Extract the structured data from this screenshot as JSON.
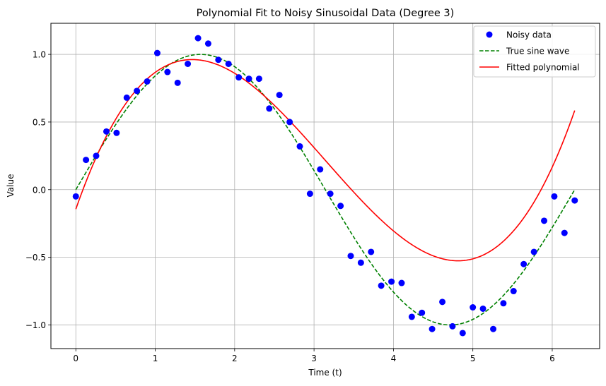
{
  "chart_data": {
    "type": "scatter",
    "title": "Polynomial Fit to Noisy Sinusoidal Data (Degree 3)",
    "xlabel": "Time (t)",
    "ylabel": "Value",
    "xlim": [
      -0.314,
      6.597
    ],
    "ylim": [
      -1.175,
      1.23
    ],
    "xticks": [
      0,
      1,
      2,
      3,
      4,
      5,
      6
    ],
    "xtick_labels": [
      "0",
      "1",
      "2",
      "3",
      "4",
      "5",
      "6"
    ],
    "yticks": [
      -1.0,
      -0.5,
      0.0,
      0.5,
      1.0
    ],
    "ytick_labels": [
      "−1.0",
      "−0.5",
      "0.0",
      "0.5",
      "1.0"
    ],
    "grid": true,
    "legend_position": "top-right",
    "series": [
      {
        "name": "Noisy data",
        "kind": "scatter",
        "color": "#0000ff",
        "x": [
          0.0,
          0.128,
          0.256,
          0.385,
          0.513,
          0.641,
          0.769,
          0.898,
          1.026,
          1.154,
          1.282,
          1.41,
          1.539,
          1.667,
          1.795,
          1.923,
          2.052,
          2.18,
          2.308,
          2.436,
          2.564,
          2.693,
          2.821,
          2.949,
          3.077,
          3.205,
          3.334,
          3.462,
          3.59,
          3.718,
          3.846,
          3.975,
          4.103,
          4.231,
          4.359,
          4.487,
          4.616,
          4.744,
          4.872,
          5.0,
          5.128,
          5.257,
          5.385,
          5.513,
          5.641,
          5.77,
          5.898,
          6.026,
          6.154,
          6.283
        ],
        "y": [
          -0.05,
          0.22,
          0.25,
          0.43,
          0.42,
          0.68,
          0.73,
          0.8,
          1.01,
          0.87,
          0.79,
          0.93,
          1.12,
          1.08,
          0.96,
          0.93,
          0.83,
          0.82,
          0.82,
          0.6,
          0.7,
          0.5,
          0.32,
          -0.03,
          0.15,
          -0.03,
          -0.12,
          -0.49,
          -0.54,
          -0.46,
          -0.71,
          -0.68,
          -0.69,
          -0.94,
          -0.91,
          -1.03,
          -0.83,
          -1.01,
          -1.06,
          -0.87,
          -0.88,
          -1.03,
          -0.84,
          -0.75,
          -0.55,
          -0.46,
          -0.23,
          -0.05,
          -0.32,
          -0.08
        ]
      },
      {
        "name": "True sine wave",
        "kind": "line",
        "style": "dashed",
        "color": "#008000",
        "function": "sin(t)",
        "x_range": [
          0,
          6.283
        ]
      },
      {
        "name": "Fitted polynomial",
        "kind": "line",
        "style": "solid",
        "color": "#ff0000",
        "function": "cubic",
        "coefficients": [
          -0.144,
          1.679,
          -0.747,
          0.0793
        ],
        "x_range": [
          0,
          6.283
        ]
      }
    ]
  }
}
